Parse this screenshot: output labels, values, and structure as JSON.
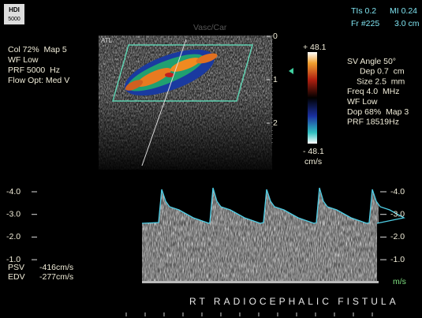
{
  "header": {
    "logo_top": "HDI",
    "logo_bottom": "5000",
    "probe_logo": "ATL",
    "preset": "Vasc/Car",
    "tis": "TIs 0.2",
    "mi": "MI 0.24",
    "frame": "Fr #225",
    "depth": "3.0 cm"
  },
  "color_settings": [
    "Col 72%  Map 5",
    "WF Low",
    "PRF 5000  Hz",
    "Flow Opt: Med V"
  ],
  "depth_scale": [
    "0",
    "1",
    "2"
  ],
  "color_bar": {
    "max": "+ 48.1",
    "min": "- 48.1",
    "unit": "cm/s"
  },
  "doppler_settings": [
    "SV Angle 50°",
    "Dep 0.7  cm",
    "Size 2.5  mm",
    "Freq 4.0  MHz",
    "WF Low",
    "Dop 68%  Map 3",
    "PRF 18519Hz"
  ],
  "spectral_scale_left": [
    "-4.0",
    "-3.0",
    "-2.0",
    "-1.0"
  ],
  "spectral_scale_right": [
    "-4.0",
    "-3.0",
    "-2.0",
    "-1.0"
  ],
  "spectral_unit": "m/s",
  "measurements": [
    {
      "label": "PSV",
      "value": "-416cm/s"
    },
    {
      "label": "EDV",
      "value": "-277cm/s"
    }
  ],
  "caption": "RT RADIOCEPHALIC FISTULA"
}
